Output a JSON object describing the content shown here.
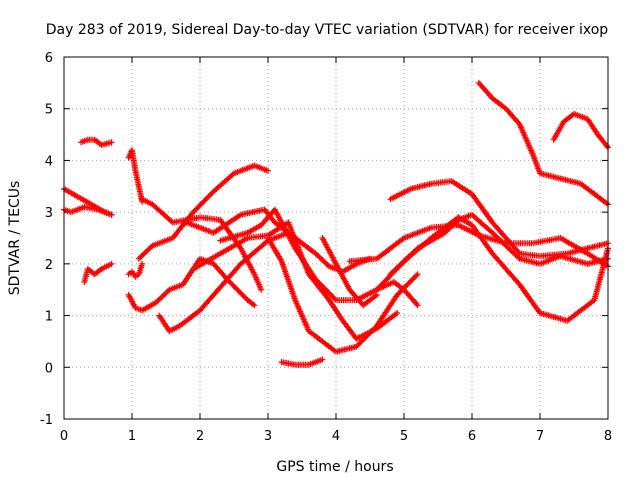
{
  "chart_data": {
    "type": "scatter",
    "title": "Day 283 of 2019, Sidereal Day-to-day VTEC variation (SDTVAR) for receiver ixop",
    "xlabel": "GPS time / hours",
    "ylabel": "SDTVAR / TECUs",
    "xlim": [
      0,
      8
    ],
    "ylim": [
      -1,
      6
    ],
    "xticks": [
      "0",
      "1",
      "2",
      "3",
      "4",
      "5",
      "6",
      "7",
      "8"
    ],
    "yticks": [
      "-1",
      "0",
      "1",
      "2",
      "3",
      "4",
      "5",
      "6"
    ],
    "grid": true,
    "marker": "+",
    "color": "#ff0000",
    "series": [
      {
        "name": "s1",
        "x": [
          0,
          0.2,
          0.4,
          0.6,
          0.7
        ],
        "y": [
          3.45,
          3.3,
          3.15,
          3.0,
          2.95
        ]
      },
      {
        "name": "s2",
        "x": [
          0,
          0.1,
          0.3,
          0.5,
          0.7
        ],
        "y": [
          3.05,
          3.0,
          3.1,
          3.05,
          2.95
        ]
      },
      {
        "name": "s3",
        "x": [
          0.25,
          0.35,
          0.45,
          0.55,
          0.7
        ],
        "y": [
          4.35,
          4.4,
          4.4,
          4.3,
          4.35
        ]
      },
      {
        "name": "s4",
        "x": [
          0.3,
          0.35,
          0.45,
          0.55,
          0.7
        ],
        "y": [
          1.65,
          1.9,
          1.8,
          1.9,
          2.0
        ]
      },
      {
        "name": "s5",
        "x": [
          0.95,
          1.0,
          1.05,
          1.1,
          1.15
        ],
        "y": [
          4.05,
          4.2,
          3.8,
          3.5,
          3.2
        ]
      },
      {
        "name": "s6",
        "x": [
          0.95,
          1.0,
          1.05,
          1.1,
          1.15
        ],
        "y": [
          1.8,
          1.85,
          1.75,
          1.8,
          2.0
        ]
      },
      {
        "name": "s7",
        "x": [
          1.15,
          1.3,
          1.6,
          2.0,
          2.3,
          2.6,
          2.8,
          2.9
        ],
        "y": [
          3.25,
          3.15,
          2.8,
          2.9,
          2.85,
          2.3,
          1.8,
          1.5
        ]
      },
      {
        "name": "s8",
        "x": [
          1.1,
          1.3,
          1.6,
          1.9,
          2.2,
          2.5,
          2.8,
          3.0
        ],
        "y": [
          2.1,
          2.35,
          2.5,
          3.0,
          3.4,
          3.75,
          3.9,
          3.8
        ]
      },
      {
        "name": "s9",
        "x": [
          0.95,
          1.05,
          1.15,
          1.35,
          1.55,
          1.75,
          2.0,
          2.2,
          2.4,
          2.7,
          2.8
        ],
        "y": [
          1.4,
          1.15,
          1.1,
          1.25,
          1.5,
          1.6,
          2.1,
          2.0,
          1.7,
          1.3,
          1.2
        ]
      },
      {
        "name": "s10",
        "x": [
          1.4,
          1.55,
          1.7,
          2.0,
          2.3,
          2.6,
          3.0,
          3.3
        ],
        "y": [
          1.0,
          0.7,
          0.8,
          1.1,
          1.55,
          2.0,
          2.45,
          2.6
        ]
      },
      {
        "name": "s11",
        "x": [
          1.9,
          2.3,
          2.7,
          3.0,
          3.3,
          3.6,
          3.9,
          4.1,
          4.3,
          4.6,
          4.9
        ],
        "y": [
          1.9,
          2.2,
          2.5,
          2.55,
          2.8,
          1.8,
          1.3,
          0.9,
          0.55,
          0.75,
          1.05
        ]
      },
      {
        "name": "s12",
        "x": [
          1.8,
          2.2,
          2.6,
          2.95,
          3.1,
          3.4,
          3.7,
          3.9,
          4.1,
          4.3,
          4.5
        ],
        "y": [
          2.8,
          2.6,
          2.95,
          3.05,
          2.8,
          2.5,
          2.2,
          1.95,
          1.85,
          2.0,
          2.1
        ]
      },
      {
        "name": "s13",
        "x": [
          2.3,
          2.7,
          2.9,
          3.1,
          3.4,
          3.7,
          4.0,
          4.3,
          4.6,
          4.85,
          5.0,
          5.2
        ],
        "y": [
          2.45,
          2.6,
          2.75,
          3.05,
          2.3,
          1.7,
          1.3,
          1.3,
          1.5,
          1.65,
          1.5,
          1.2
        ]
      },
      {
        "name": "s14",
        "x": [
          3.0,
          3.2,
          3.4,
          3.6,
          3.8,
          4.0,
          4.3,
          4.6,
          4.9,
          5.2
        ],
        "y": [
          2.5,
          2.05,
          1.3,
          0.7,
          0.5,
          0.3,
          0.4,
          0.8,
          1.4,
          1.8
        ]
      },
      {
        "name": "s15",
        "x": [
          3.2,
          3.4,
          3.6,
          3.8
        ],
        "y": [
          0.1,
          0.05,
          0.05,
          0.15
        ]
      },
      {
        "name": "s16",
        "x": [
          3.8,
          4.0,
          4.2,
          4.4,
          4.6
        ],
        "y": [
          2.5,
          2.0,
          1.5,
          1.2,
          1.4
        ]
      },
      {
        "name": "s17",
        "x": [
          4.2,
          4.6,
          5.0,
          5.4,
          5.8,
          6.1,
          6.5,
          6.9,
          7.3,
          7.7,
          8.0
        ],
        "y": [
          2.05,
          2.1,
          2.5,
          2.7,
          2.75,
          2.55,
          2.4,
          2.4,
          2.5,
          2.2,
          1.95
        ]
      },
      {
        "name": "s18",
        "x": [
          4.6,
          5.0,
          5.4,
          5.8,
          6.0,
          6.3,
          6.7,
          7.0,
          7.4,
          7.8,
          8.0
        ],
        "y": [
          1.5,
          2.05,
          2.5,
          2.9,
          2.75,
          2.2,
          1.6,
          1.05,
          0.9,
          1.3,
          2.3
        ]
      },
      {
        "name": "s19",
        "x": [
          4.8,
          5.2,
          5.6,
          5.8,
          6.0,
          6.3,
          6.7,
          7.0,
          7.3,
          7.7,
          8.0
        ],
        "y": [
          1.8,
          2.3,
          2.6,
          2.85,
          2.95,
          2.6,
          2.1,
          2.0,
          2.15,
          2.0,
          2.1
        ]
      },
      {
        "name": "s20",
        "x": [
          4.8,
          5.1,
          5.4,
          5.7,
          6.0,
          6.3,
          6.7,
          7.0,
          7.4,
          7.7,
          8.0
        ],
        "y": [
          3.25,
          3.45,
          3.55,
          3.6,
          3.35,
          2.8,
          2.2,
          2.15,
          2.2,
          2.3,
          2.4
        ]
      },
      {
        "name": "s21",
        "x": [
          6.1,
          6.3,
          6.5,
          6.7,
          6.9,
          7.0,
          7.3,
          7.6,
          7.8,
          8.0
        ],
        "y": [
          5.5,
          5.2,
          5.0,
          4.7,
          4.1,
          3.75,
          3.65,
          3.55,
          3.35,
          3.15
        ]
      },
      {
        "name": "s22",
        "x": [
          7.2,
          7.35,
          7.5,
          7.7,
          7.85,
          8.0
        ],
        "y": [
          4.4,
          4.75,
          4.9,
          4.8,
          4.5,
          4.25
        ]
      }
    ]
  }
}
